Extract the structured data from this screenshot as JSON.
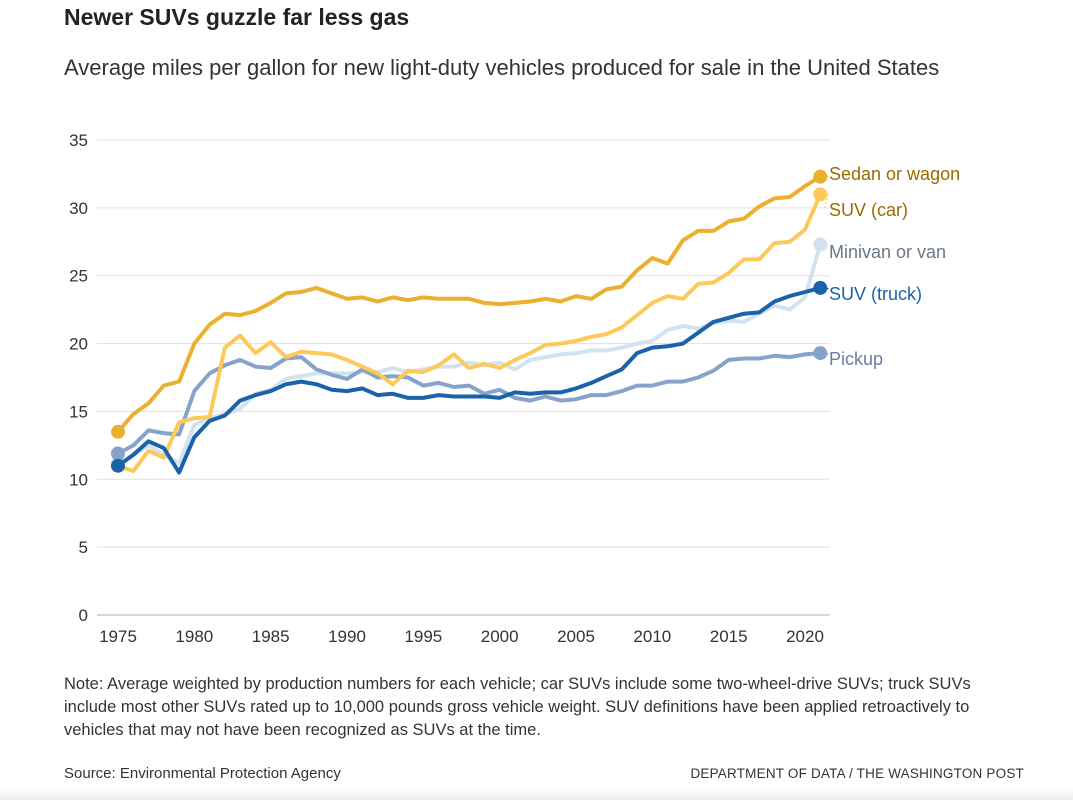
{
  "title": "Newer SUVs guzzle far less gas",
  "subtitle": "Average miles per gallon for new light-duty vehicles produced for sale in the United States",
  "note": "Note: Average weighted by production numbers for each vehicle; car SUVs include some two-wheel-drive SUVs; truck SUVs include most other SUVs rated up to 10,000 pounds gross vehicle weight. SUV definitions have been applied retroactively to vehicles that may not have been recognized as SUVs at the time.",
  "source": "Source: Environmental Protection Agency",
  "credit": "DEPARTMENT OF DATA / THE WASHINGTON POST",
  "chart_data": {
    "type": "line",
    "title": "Newer SUVs guzzle far less gas",
    "xlabel": "",
    "ylabel": "Miles per gallon",
    "xlim": [
      1975,
      2021
    ],
    "ylim": [
      0,
      35
    ],
    "yticks": [
      0,
      5,
      10,
      15,
      20,
      25,
      30,
      35
    ],
    "xticks": [
      1975,
      1980,
      1985,
      1990,
      1995,
      2000,
      2005,
      2010,
      2015,
      2020
    ],
    "grid": true,
    "legend": "right (direct labels)",
    "x_start": 1975,
    "series": [
      {
        "name": "Minivan or van",
        "color": "#d3e2f1",
        "label_color": "#6b7785",
        "values": [
          11.2,
          11.8,
          12.5,
          11.8,
          11.2,
          14.0,
          14.5,
          14.8,
          15.2,
          16.3,
          16.6,
          17.4,
          17.6,
          17.8,
          17.8,
          17.8,
          17.9,
          17.9,
          18.2,
          17.9,
          18.1,
          18.3,
          18.3,
          18.6,
          18.4,
          18.6,
          18.1,
          18.8,
          19.0,
          19.2,
          19.3,
          19.5,
          19.5,
          19.7,
          20.0,
          20.2,
          21.0,
          21.3,
          21.1,
          21.5,
          21.7,
          21.6,
          22.2,
          22.8,
          22.5,
          23.4,
          27.3
        ]
      },
      {
        "name": "Pickup",
        "color": "#87a3cb",
        "label_color": "#6b7f9e",
        "values": [
          11.9,
          12.5,
          13.6,
          13.4,
          13.3,
          16.5,
          17.8,
          18.4,
          18.8,
          18.3,
          18.2,
          18.9,
          19.0,
          18.1,
          17.7,
          17.4,
          18.1,
          17.5,
          17.6,
          17.5,
          16.9,
          17.1,
          16.8,
          16.9,
          16.3,
          16.6,
          16.0,
          15.8,
          16.1,
          15.8,
          15.9,
          16.2,
          16.2,
          16.5,
          16.9,
          16.9,
          17.2,
          17.2,
          17.5,
          18.0,
          18.8,
          18.9,
          18.9,
          19.1,
          19.0,
          19.2,
          19.3
        ]
      },
      {
        "name": "SUV (car)",
        "color": "#fdc95a",
        "label_color": "#9b6a00",
        "values": [
          11.0,
          10.6,
          12.1,
          11.6,
          14.2,
          14.5,
          14.6,
          19.7,
          20.6,
          19.3,
          20.1,
          19.0,
          19.4,
          19.3,
          19.2,
          18.8,
          18.3,
          17.8,
          17.0,
          18.0,
          17.9,
          18.4,
          19.2,
          18.2,
          18.5,
          18.2,
          18.8,
          19.3,
          19.9,
          20.0,
          20.2,
          20.5,
          20.7,
          21.2,
          22.1,
          23.0,
          23.5,
          23.3,
          24.4,
          24.5,
          25.2,
          26.2,
          26.2,
          27.4,
          27.5,
          28.4,
          31.0
        ]
      },
      {
        "name": "SUV (truck)",
        "color": "#1a63aa",
        "label_color": "#1a63aa",
        "values": [
          11.0,
          11.8,
          12.8,
          12.3,
          10.5,
          13.1,
          14.3,
          14.7,
          15.8,
          16.2,
          16.5,
          17.0,
          17.2,
          17.0,
          16.6,
          16.5,
          16.7,
          16.2,
          16.3,
          16.0,
          16.0,
          16.2,
          16.1,
          16.1,
          16.1,
          16.0,
          16.4,
          16.3,
          16.4,
          16.4,
          16.7,
          17.1,
          17.6,
          18.1,
          19.3,
          19.7,
          19.8,
          20.0,
          20.8,
          21.6,
          21.9,
          22.2,
          22.3,
          23.1,
          23.5,
          23.8,
          24.1
        ]
      },
      {
        "name": "Sedan or wagon",
        "color": "#ebb02e",
        "label_color": "#9b6a00",
        "values": [
          13.5,
          14.8,
          15.6,
          16.9,
          17.2,
          20.0,
          21.4,
          22.2,
          22.1,
          22.4,
          23.0,
          23.7,
          23.8,
          24.1,
          23.7,
          23.3,
          23.4,
          23.1,
          23.4,
          23.2,
          23.4,
          23.3,
          23.3,
          23.3,
          23.0,
          22.9,
          23.0,
          23.1,
          23.3,
          23.1,
          23.5,
          23.3,
          24.0,
          24.2,
          25.4,
          26.3,
          25.9,
          27.6,
          28.3,
          28.3,
          29.0,
          29.2,
          30.1,
          30.7,
          30.8,
          31.6,
          32.3
        ]
      }
    ]
  }
}
